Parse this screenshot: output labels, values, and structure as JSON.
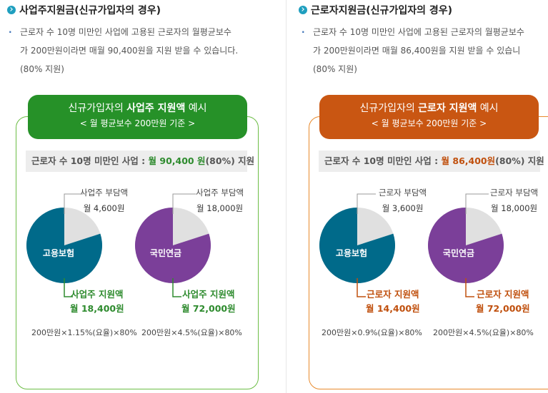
{
  "employer": {
    "title": "사업주지원금(신규가입자의 경우)",
    "desc_lines": [
      "근로자 수 10명 미만인 사업에 고용된 근로자의 월평균보수",
      "가 200만원이라면 매월 90,400원을 지원 받을 수 있습니다.",
      "(80% 지원)"
    ],
    "header_pre": "신규가입자의 ",
    "header_bold": "사업주 지원액",
    "header_post": " 예시",
    "header_sub": "< 월 평균보수 200만원 기준 >",
    "bar_pre": "근로자 수 10명 미만인 사업 : ",
    "bar_val": "월 90,400 원",
    "bar_post": "(80%) 지원",
    "pies": [
      {
        "center_label": "고용보험",
        "burden_label": "사업주 부담액",
        "burden_amount": "월 4,600원",
        "support_label": "사업주 지원액",
        "support_amount": "월 18,400원",
        "formula": "200만원×1.15%(요율)×80%",
        "support_fraction": 0.8,
        "color": "#006a8a"
      },
      {
        "center_label": "국민연금",
        "burden_label": "사업주 부담액",
        "burden_amount": "월 18,000원",
        "support_label": "사업주 지원액",
        "support_amount": "월 72,000원",
        "formula": "200만원×4.5%(요율)×80%",
        "support_fraction": 0.8,
        "color": "#7b3f99"
      }
    ]
  },
  "worker": {
    "title": "근로자지원금(신규가입자의 경우)",
    "desc_lines": [
      "근로자 수 10명 미만인 사업에 고용된 근로자의 월평균보수",
      "가 200만원이라면 매월 86,400원을 지원 받을 수 있습니",
      "(80% 지원)"
    ],
    "header_pre": "신규가입자의 ",
    "header_bold": "근로자 지원액",
    "header_post": " 예시",
    "header_sub": "< 월 평균보수 200만원 기준 >",
    "bar_pre": "근로자 수 10명 미만인 사업 : ",
    "bar_val": "월 86,400원",
    "bar_post": "(80%) 지원",
    "pies": [
      {
        "center_label": "고용보험",
        "burden_label": "근로자 부담액",
        "burden_amount": "월 3,600원",
        "support_label": "근로자 지원액",
        "support_amount": "월 14,400원",
        "formula": "200만원×0.9%(요율)×80%",
        "support_fraction": 0.8,
        "color": "#006a8a"
      },
      {
        "center_label": "국민연금",
        "burden_label": "근로자 부담액",
        "burden_amount": "월 18,000원",
        "support_label": "근로자 지원액",
        "support_amount": "월 72,000원",
        "formula": "200만원×4.5%(요율)×80%",
        "support_fraction": 0.8,
        "color": "#7b3f99"
      }
    ]
  }
}
